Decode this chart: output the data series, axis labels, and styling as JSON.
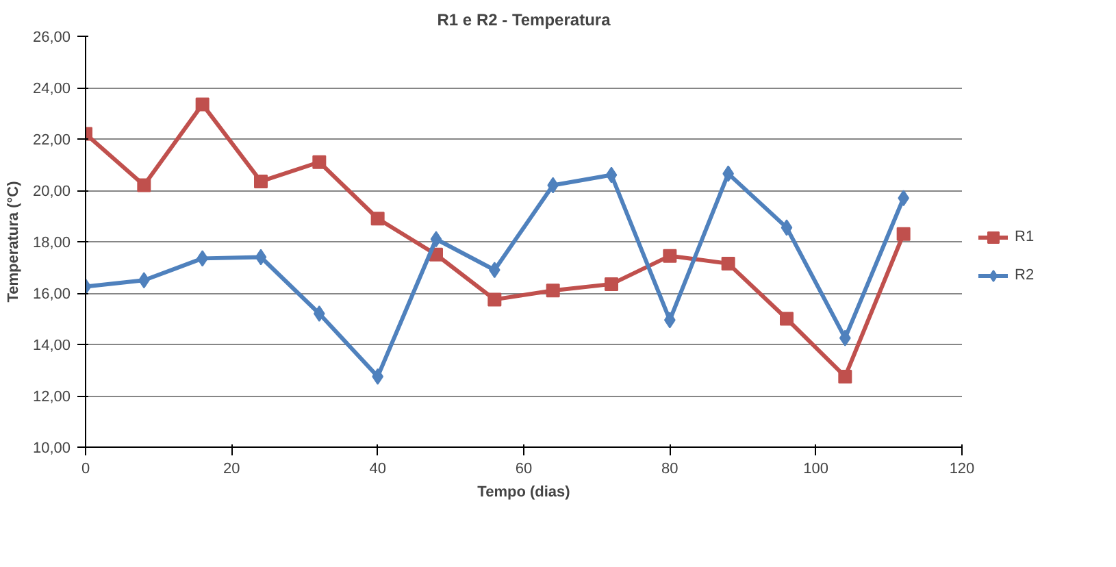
{
  "chart_data": {
    "type": "line",
    "title": "R1 e R2 - Temperatura",
    "xlabel": "Tempo (dias)",
    "ylabel": "Temperatura (°C)",
    "x": [
      0,
      8,
      16,
      24,
      32,
      40,
      48,
      56,
      64,
      72,
      80,
      88,
      96,
      104,
      112
    ],
    "series": [
      {
        "name": "R1",
        "color": "#c0504d",
        "marker": "square",
        "values": [
          22.2,
          20.2,
          23.35,
          20.35,
          21.1,
          18.9,
          17.5,
          15.75,
          16.1,
          16.35,
          17.45,
          17.15,
          15.0,
          12.75,
          18.3
        ]
      },
      {
        "name": "R2",
        "color": "#4f81bd",
        "marker": "diamond",
        "values": [
          16.25,
          16.5,
          17.35,
          17.4,
          15.2,
          12.75,
          18.1,
          16.9,
          20.2,
          20.6,
          14.95,
          20.65,
          18.55,
          14.25,
          19.7
        ]
      }
    ],
    "xlim": [
      0,
      120
    ],
    "xticks": [
      0,
      20,
      40,
      60,
      80,
      100,
      120
    ],
    "ylim": [
      10,
      26
    ],
    "yticks": [
      {
        "value": 10,
        "label": "10,00"
      },
      {
        "value": 12,
        "label": "12,00"
      },
      {
        "value": 14,
        "label": "14,00"
      },
      {
        "value": 16,
        "label": "16,00"
      },
      {
        "value": 18,
        "label": "18,00"
      },
      {
        "value": 20,
        "label": "20,00"
      },
      {
        "value": 22,
        "label": "22,00"
      },
      {
        "value": 24,
        "label": "24,00"
      },
      {
        "value": 26,
        "label": "26,00"
      }
    ],
    "grid": "y",
    "legend": "right",
    "line_style": "solid"
  }
}
